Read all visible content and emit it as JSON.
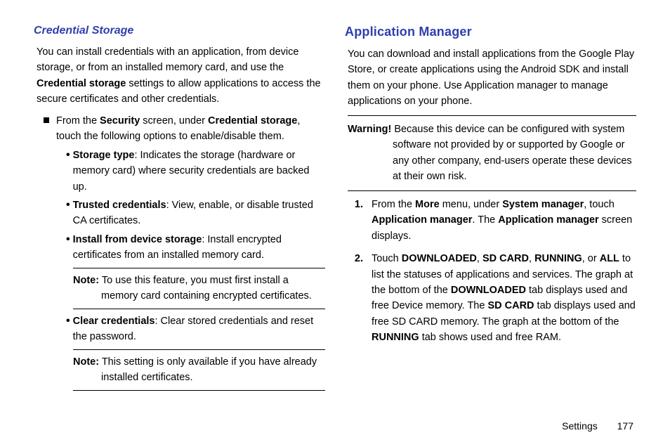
{
  "colors": {
    "blue": "#2e3fae"
  },
  "left": {
    "heading": "Credential Storage",
    "intro_a": "You can install credentials with an application, from device storage, or from an installed memory card, and use the ",
    "intro_b": "Credential storage",
    "intro_c": " settings to allow applications to access the secure certificates and other credentials.",
    "sq_a": "From the ",
    "sq_b": "Security",
    "sq_c": " screen, under ",
    "sq_d": "Credential storage",
    "sq_e": ", touch the following options to enable/disable them.",
    "b1_t": "Storage type",
    "b1_r": ": Indicates the storage (hardware or memory card) where security credentials are backed up.",
    "b2_t": "Trusted credentials",
    "b2_r": ": View, enable, or disable trusted CA certificates.",
    "b3_t": "Install from device storage",
    "b3_r": ": Install encrypted certificates from an installed memory card.",
    "note1_t": "Note:",
    "note1_r": " To use this feature, you must first install a memory card containing encrypted certificates.",
    "b4_t": "Clear credentials",
    "b4_r": ": Clear stored credentials and reset the password.",
    "note2_t": "Note:",
    "note2_r": " This setting is only available if you have already installed certificates."
  },
  "right": {
    "heading": "Application Manager",
    "intro": "You can download and install applications from the Google Play Store, or create applications using the Android SDK and install them on your phone. Use Application manager to manage applications on your phone.",
    "warn_t": "Warning!",
    "warn_r": " Because this device can be configured with system software not provided by or supported by Google or any other company, end-users operate these devices at their own risk.",
    "s1_a": "From the ",
    "s1_b": "More",
    "s1_c": " menu, under ",
    "s1_d": "System manager",
    "s1_e": ", touch ",
    "s1_f": "Application manager",
    "s1_g": ". The ",
    "s1_h": "Application manager",
    "s1_i": " screen displays.",
    "s2_a": "Touch ",
    "s2_b": "DOWNLOADED",
    "s2_c": ", ",
    "s2_d": "SD CARD",
    "s2_e": ", ",
    "s2_f": "RUNNING",
    "s2_g": ", or ",
    "s2_h": "ALL",
    "s2_i": " to list the statuses of applications and services. The graph at the bottom of the ",
    "s2_j": "DOWNLOADED",
    "s2_k": " tab displays used and free Device memory. The ",
    "s2_l": "SD CARD",
    "s2_m": " tab displays used and free SD CARD memory. The graph at the bottom of the ",
    "s2_n": "RUNNING",
    "s2_o": " tab shows used and free RAM."
  },
  "footer": {
    "section": "Settings",
    "page": "177"
  }
}
